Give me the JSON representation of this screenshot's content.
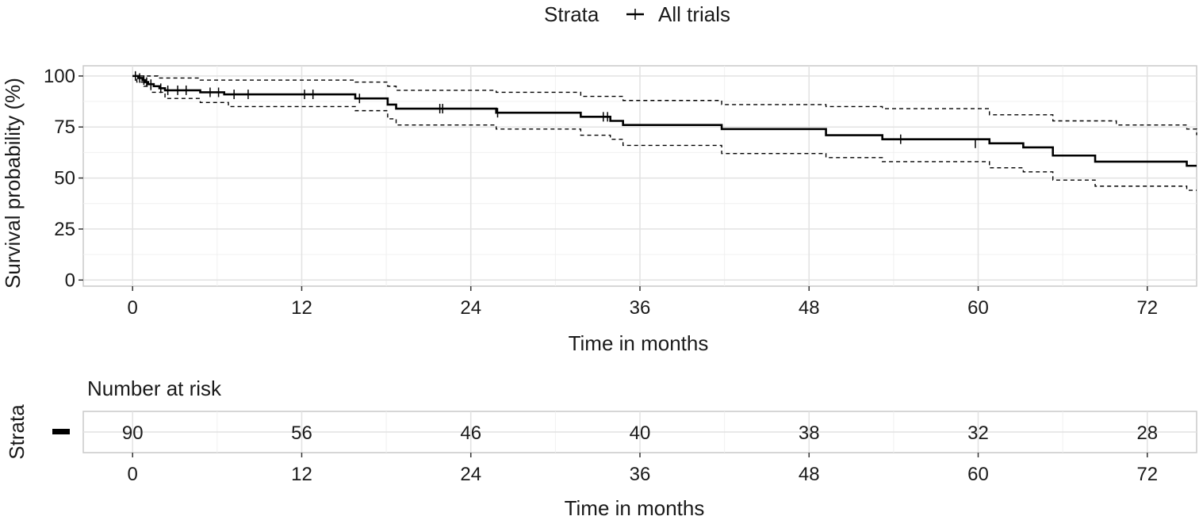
{
  "legend": {
    "title": "Strata",
    "entry": "All trials"
  },
  "chart_data": [
    {
      "type": "line",
      "subtype": "kaplan-meier survival curve with 95% confidence band and censoring marks",
      "title": "",
      "xlabel": "Time in months",
      "ylabel": "Survival probability (%)",
      "xlim": [
        -3.5,
        75.5
      ],
      "ylim": [
        -3,
        105
      ],
      "xticks": [
        0,
        12,
        24,
        36,
        48,
        60,
        72
      ],
      "yticks": [
        0,
        25,
        50,
        75,
        100
      ],
      "grid": true,
      "legend_position": "top",
      "series": [
        {
          "name": "All trials",
          "style": "solid",
          "color": "#000000",
          "steps": [
            [
              0,
              100
            ],
            [
              0.4,
              99
            ],
            [
              0.7,
              98
            ],
            [
              0.9,
              97
            ],
            [
              1.1,
              96
            ],
            [
              1.5,
              95
            ],
            [
              1.9,
              94
            ],
            [
              2.3,
              93
            ],
            [
              4.8,
              92
            ],
            [
              6.5,
              91
            ],
            [
              15.8,
              89
            ],
            [
              18.1,
              86
            ],
            [
              18.7,
              84
            ],
            [
              25.8,
              82
            ],
            [
              31.8,
              80
            ],
            [
              33.9,
              78
            ],
            [
              34.8,
              76
            ],
            [
              41.8,
              74
            ],
            [
              49.2,
              71
            ],
            [
              53.2,
              69
            ],
            [
              60.8,
              67
            ],
            [
              63.2,
              65
            ],
            [
              65.3,
              61
            ],
            [
              68.3,
              58
            ],
            [
              74.8,
              56
            ],
            [
              75.5,
              56
            ]
          ],
          "censor_marks": [
            [
              0.2,
              100
            ],
            [
              0.5,
              99
            ],
            [
              0.8,
              98
            ],
            [
              1.0,
              97
            ],
            [
              1.3,
              96
            ],
            [
              2.0,
              94
            ],
            [
              2.5,
              93
            ],
            [
              3.2,
              93
            ],
            [
              3.8,
              93
            ],
            [
              5.5,
              92
            ],
            [
              6.1,
              92
            ],
            [
              7.2,
              91
            ],
            [
              8.2,
              91
            ],
            [
              12.2,
              91
            ],
            [
              12.8,
              91
            ],
            [
              16.1,
              89
            ],
            [
              21.8,
              84
            ],
            [
              22.0,
              84
            ],
            [
              25.9,
              82
            ],
            [
              33.4,
              80
            ],
            [
              33.7,
              80
            ],
            [
              54.5,
              69
            ],
            [
              59.8,
              67
            ]
          ]
        },
        {
          "name": "Upper 95% CI",
          "style": "dashed",
          "color": "#000000",
          "steps": [
            [
              0,
              100
            ],
            [
              1.8,
              99
            ],
            [
              4.8,
              98
            ],
            [
              15.8,
              97
            ],
            [
              18.1,
              95
            ],
            [
              18.7,
              93
            ],
            [
              25.8,
              92
            ],
            [
              31.8,
              90
            ],
            [
              34.8,
              88
            ],
            [
              41.8,
              86
            ],
            [
              49.2,
              85
            ],
            [
              53.2,
              84
            ],
            [
              60.8,
              81
            ],
            [
              65.3,
              78
            ],
            [
              69.8,
              76
            ],
            [
              74.8,
              74
            ],
            [
              75.5,
              71
            ]
          ]
        },
        {
          "name": "Lower 95% CI",
          "style": "dashed",
          "color": "#000000",
          "steps": [
            [
              0,
              100
            ],
            [
              0.3,
              97
            ],
            [
              0.8,
              95
            ],
            [
              1.3,
              92
            ],
            [
              2.3,
              89
            ],
            [
              4.8,
              87
            ],
            [
              6.8,
              85
            ],
            [
              15.8,
              83
            ],
            [
              18.1,
              79
            ],
            [
              18.7,
              76
            ],
            [
              25.8,
              74
            ],
            [
              31.8,
              71
            ],
            [
              33.9,
              69
            ],
            [
              34.8,
              66
            ],
            [
              41.8,
              62
            ],
            [
              49.2,
              60
            ],
            [
              53.2,
              58
            ],
            [
              60.8,
              55
            ],
            [
              63.2,
              53
            ],
            [
              65.3,
              49
            ],
            [
              68.3,
              46
            ],
            [
              74.8,
              44
            ],
            [
              75.5,
              44
            ]
          ]
        }
      ]
    },
    {
      "type": "table",
      "title": "Number at risk",
      "xlabel": "Time in months",
      "ylabel": "Strata",
      "row_label": "-",
      "xticks": [
        0,
        12,
        24,
        36,
        48,
        60,
        72
      ],
      "values": [
        90,
        56,
        46,
        40,
        38,
        32,
        28
      ]
    }
  ]
}
